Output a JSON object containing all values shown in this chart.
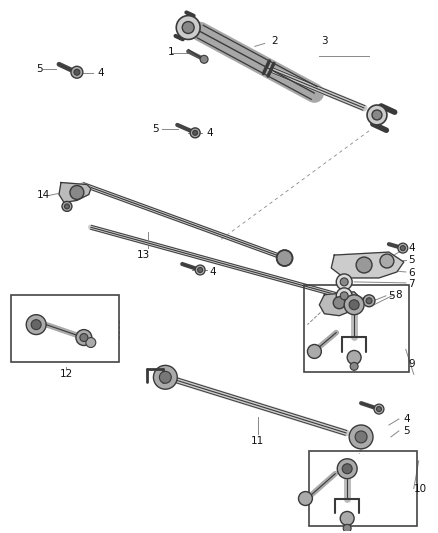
{
  "bg_color": "#ffffff",
  "figsize": [
    4.38,
    5.33
  ],
  "dpi": 100,
  "line_color": "#2a2a2a",
  "part_color": "#3a3a3a",
  "label_color": "#111111",
  "label_fontsize": 7.5,
  "leader_color": "#888888"
}
